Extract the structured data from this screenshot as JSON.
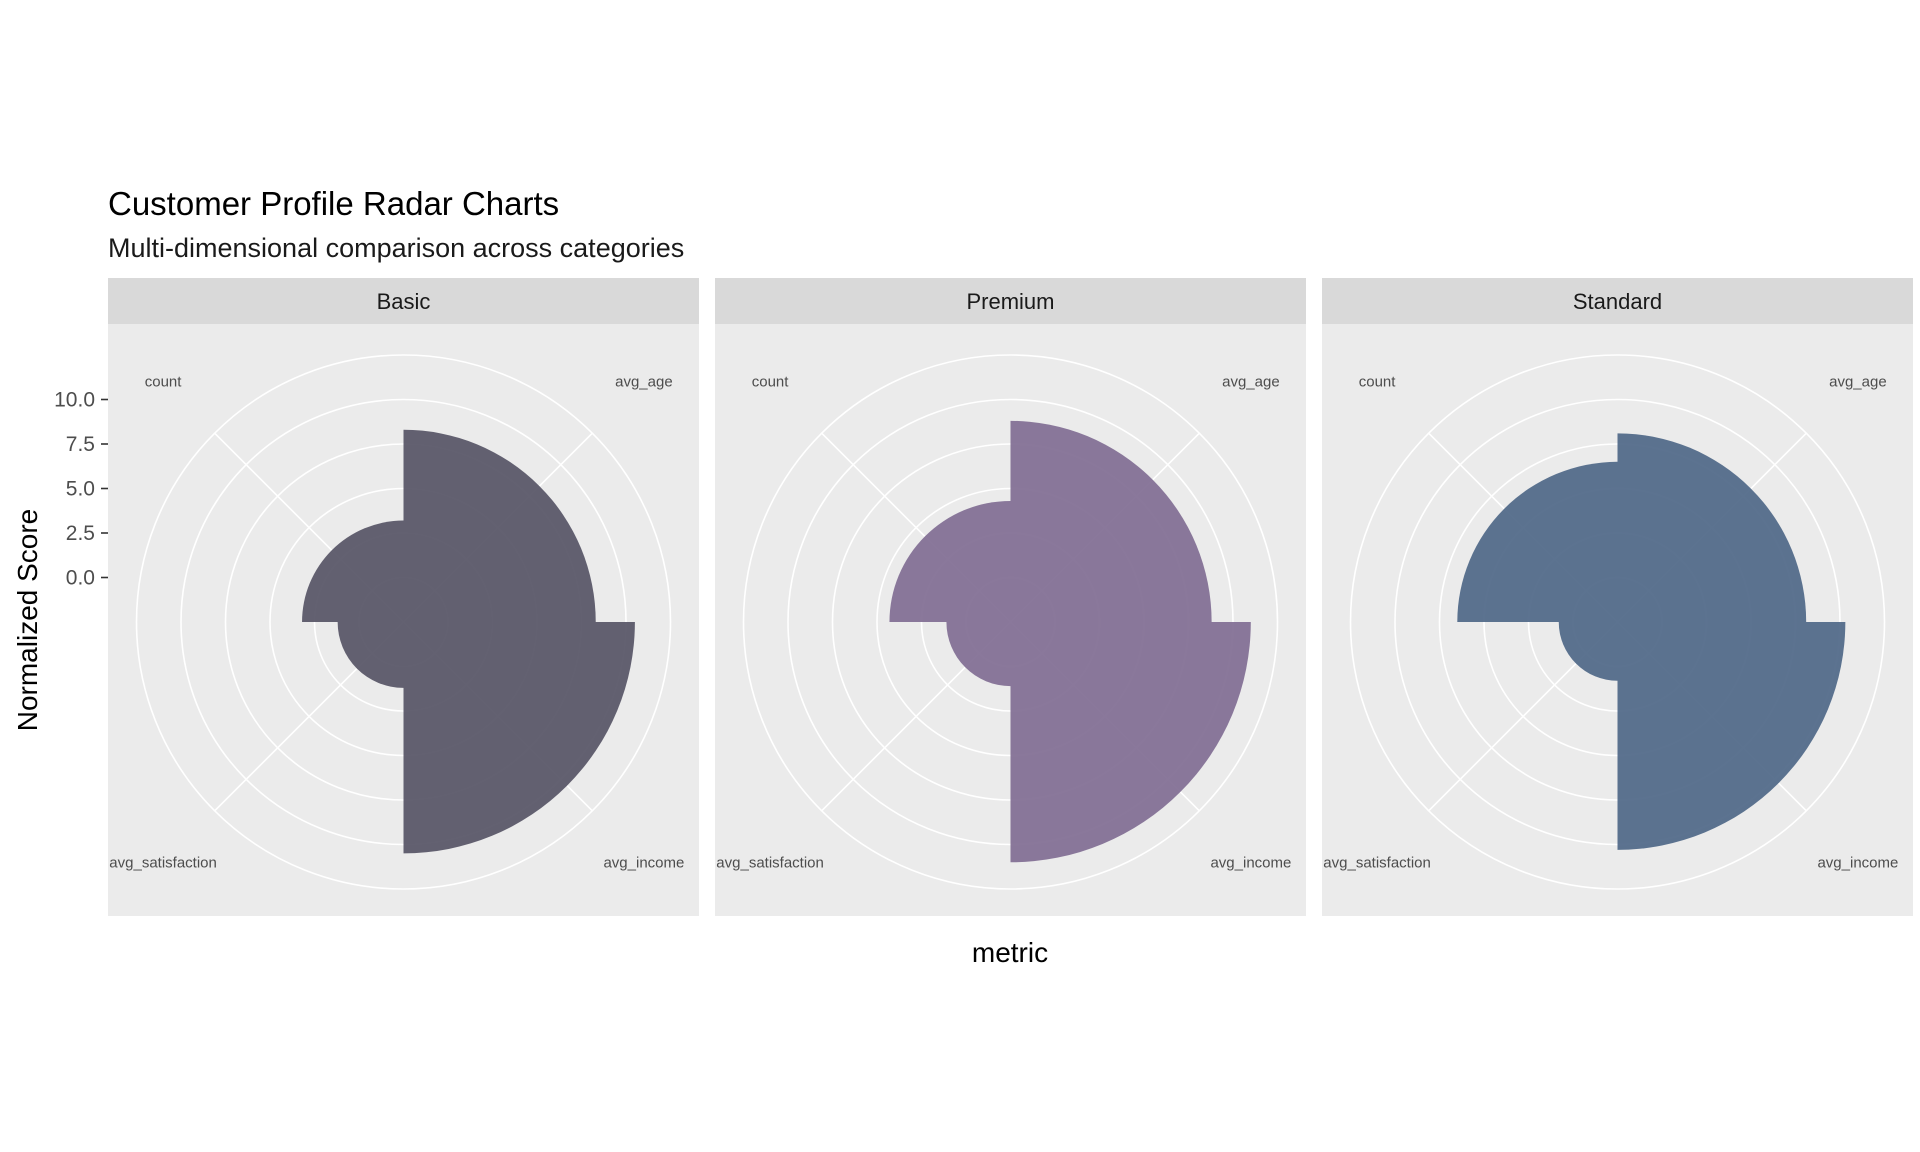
{
  "chart_data": {
    "type": "polar-bar",
    "title": "Customer Profile Radar Charts",
    "subtitle": "Multi-dimensional comparison across categories",
    "xlabel": "metric",
    "ylabel": "Normalized Score",
    "y_ticks": [
      "10.0",
      "7.5",
      "5.0",
      "2.5",
      "0.0"
    ],
    "y_tick_values": [
      10.0,
      7.5,
      5.0,
      2.5,
      0.0
    ],
    "ylim": [
      -2.5,
      12.5
    ],
    "metrics": [
      "avg_age",
      "avg_income",
      "avg_satisfaction",
      "count"
    ],
    "grid": true,
    "legend": "none",
    "panels": [
      {
        "name": "Basic",
        "color": "#5b5869",
        "values": [
          8.3,
          10.5,
          1.2,
          3.2
        ]
      },
      {
        "name": "Premium",
        "color": "#847196",
        "values": [
          8.8,
          11.0,
          1.1,
          4.3
        ]
      },
      {
        "name": "Standard",
        "color": "#536b8a",
        "values": [
          8.1,
          10.3,
          0.8,
          6.5
        ]
      }
    ]
  }
}
